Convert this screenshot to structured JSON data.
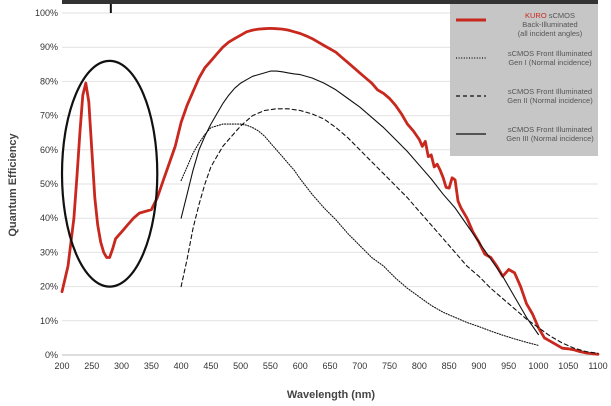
{
  "chart_data": {
    "type": "line",
    "title": "",
    "xlabel": "Wavelength (nm)",
    "ylabel": "Quantum Efficiency",
    "xlim": [
      200,
      1100
    ],
    "ylim": [
      0,
      100
    ],
    "x_ticks": [
      200,
      250,
      300,
      350,
      400,
      450,
      500,
      550,
      600,
      650,
      700,
      750,
      800,
      850,
      900,
      950,
      1000,
      1050,
      1100
    ],
    "y_ticks": [
      "0%",
      "10%",
      "20%",
      "30%",
      "40%",
      "50%",
      "60%",
      "70%",
      "80%",
      "90%",
      "100%"
    ],
    "grid": "horizontal",
    "legend_position": "top-right",
    "series": [
      {
        "name": "KURO sCMOS",
        "name_highlight": "KURO",
        "name_rest": " sCMOS",
        "sublines": [
          "Back-Illuminated",
          "(all incident angles)"
        ],
        "color": "#c8281e",
        "style": "solid",
        "x": [
          200,
          210,
          220,
          225,
          230,
          235,
          240,
          245,
          250,
          255,
          260,
          265,
          270,
          275,
          280,
          285,
          290,
          295,
          300,
          310,
          320,
          330,
          340,
          350,
          360,
          370,
          380,
          390,
          400,
          410,
          420,
          430,
          440,
          450,
          460,
          470,
          480,
          490,
          500,
          510,
          520,
          530,
          540,
          550,
          560,
          570,
          580,
          590,
          600,
          610,
          620,
          630,
          640,
          650,
          660,
          670,
          680,
          690,
          700,
          710,
          720,
          730,
          740,
          750,
          760,
          770,
          780,
          790,
          800,
          805,
          810,
          815,
          820,
          825,
          830,
          835,
          840,
          845,
          850,
          855,
          860,
          865,
          870,
          880,
          890,
          900,
          910,
          920,
          930,
          940,
          950,
          960,
          970,
          980,
          990,
          1000,
          1010,
          1020,
          1030,
          1040,
          1050,
          1060,
          1070,
          1080,
          1090,
          1100
        ],
        "y": [
          18.5,
          26,
          40,
          52,
          65,
          76,
          79.5,
          74,
          60,
          46,
          38,
          33,
          30,
          28.5,
          28.5,
          31,
          34,
          35,
          36,
          38,
          40,
          41.5,
          42,
          42.5,
          46,
          51,
          56,
          61,
          68,
          73,
          77,
          81,
          84,
          86,
          88,
          90,
          91.5,
          92.5,
          93.5,
          94.5,
          95,
          95.3,
          95.4,
          95.5,
          95.4,
          95.3,
          95,
          94.5,
          94,
          93.3,
          92.5,
          91.5,
          90.5,
          89.5,
          88.5,
          87,
          85.5,
          84,
          82.5,
          81,
          79.5,
          77.5,
          76.5,
          75,
          73,
          70.5,
          67.5,
          65.5,
          63,
          61,
          62.5,
          58,
          58.5,
          55,
          55.8,
          54,
          51.8,
          49,
          48.8,
          51.8,
          51.2,
          45,
          43,
          40,
          36,
          33,
          29.5,
          28.5,
          26,
          23,
          25,
          24,
          20,
          15,
          12,
          8,
          5,
          4,
          3,
          2,
          1.8,
          1.5,
          1,
          0.6,
          0.4,
          0.2
        ]
      },
      {
        "name": "sCMOS Front Illuminated",
        "sublines": [
          "Gen I (Normal incidence)"
        ],
        "color": "#111111",
        "style": "dotted",
        "x": [
          400,
          410,
          420,
          430,
          440,
          450,
          460,
          470,
          480,
          490,
          500,
          510,
          520,
          530,
          540,
          550,
          560,
          570,
          580,
          590,
          600,
          620,
          640,
          660,
          680,
          700,
          720,
          740,
          760,
          780,
          800,
          820,
          840,
          860,
          880,
          900,
          920,
          940,
          960,
          980,
          1000
        ],
        "y": [
          51,
          55,
          59,
          62,
          64.5,
          66.5,
          67,
          67.5,
          67.5,
          67.5,
          67.5,
          67.2,
          66.5,
          65.5,
          64,
          62,
          60,
          58,
          56,
          54,
          51.5,
          47,
          43,
          39.5,
          35.5,
          32,
          28.5,
          26,
          22.5,
          19.5,
          17,
          14.5,
          12.5,
          11,
          9.5,
          8.3,
          7,
          5.8,
          4.7,
          3.7,
          2.8
        ]
      },
      {
        "name": "sCMOS Front Illuminated",
        "sublines": [
          "Gen II (Normal incidence)"
        ],
        "color": "#111111",
        "style": "dashed",
        "x": [
          400,
          410,
          420,
          430,
          440,
          450,
          460,
          470,
          480,
          490,
          500,
          520,
          540,
          560,
          580,
          600,
          620,
          640,
          660,
          680,
          700,
          720,
          740,
          760,
          780,
          800,
          820,
          840,
          860,
          880,
          900,
          920,
          940,
          960,
          980,
          1000,
          1020,
          1040,
          1060,
          1080,
          1100
        ],
        "y": [
          20,
          28,
          37,
          44,
          50,
          55,
          58,
          61,
          63,
          65,
          67,
          70,
          71.5,
          72,
          72,
          71.5,
          70.5,
          69,
          66.5,
          63.5,
          60,
          56.5,
          53,
          49.5,
          46,
          42,
          38,
          34,
          30,
          26,
          23,
          19.5,
          16.5,
          13.5,
          10.5,
          8,
          5.5,
          3.5,
          2,
          1,
          0.5
        ]
      },
      {
        "name": "sCMOS Front Illuminated",
        "sublines": [
          "Gen III (Normal incidence)"
        ],
        "color": "#111111",
        "style": "solid",
        "x": [
          400,
          410,
          420,
          430,
          440,
          450,
          460,
          470,
          480,
          490,
          500,
          510,
          520,
          530,
          540,
          550,
          560,
          570,
          580,
          590,
          600,
          620,
          640,
          660,
          680,
          700,
          720,
          740,
          760,
          780,
          800,
          820,
          840,
          860,
          880,
          900,
          920,
          940,
          960,
          980,
          1000
        ],
        "y": [
          40,
          47,
          54,
          60,
          64,
          67.5,
          70.5,
          73.5,
          76,
          78,
          79.5,
          80.5,
          81.5,
          82,
          82.5,
          83,
          83,
          82.8,
          82.5,
          82.2,
          82,
          81,
          79.5,
          77.5,
          75,
          72.5,
          69.5,
          66.5,
          63,
          59.5,
          55.5,
          51.5,
          47,
          43,
          38,
          33,
          28,
          23,
          17,
          11,
          6
        ]
      }
    ],
    "annotations": [
      {
        "type": "ellipse",
        "cx": 280,
        "cy": 53,
        "rx": 80,
        "ry": 33
      },
      {
        "type": "vertical-line",
        "x": 282,
        "y_from": 100,
        "y_to": 104
      }
    ]
  }
}
